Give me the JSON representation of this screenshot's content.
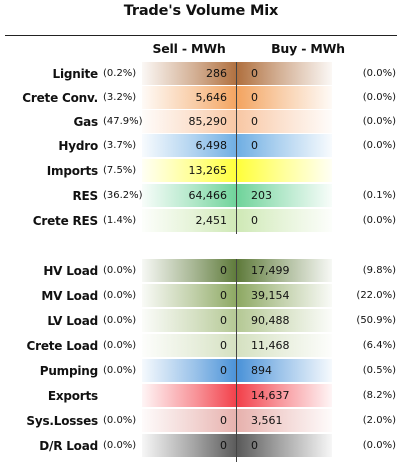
{
  "title": "Trade's Volume Mix",
  "columns": {
    "sell": "Sell - MWh",
    "buy": "Buy - MWh"
  },
  "chart_data": {
    "type": "table",
    "title": "Trade's Volume Mix",
    "columns": [
      "Sell - MWh",
      "Buy - MWh"
    ],
    "rows": [
      {
        "label": "Lignite",
        "sell_pct": "(0.2%)",
        "sell": "286",
        "buy": "0",
        "buy_pct": "(0.0%)",
        "sell_color": "#b0703f",
        "buy_color": "#b0703f"
      },
      {
        "label": "Crete Conv.",
        "sell_pct": "(3.2%)",
        "sell": "5,646",
        "buy": "0",
        "buy_pct": "(0.0%)",
        "sell_color": "#f3a460",
        "buy_color": "#f3a460"
      },
      {
        "label": "Gas",
        "sell_pct": "(47.9%)",
        "sell": "85,290",
        "buy": "0",
        "buy_pct": "(0.0%)",
        "sell_color": "#f8c7a4",
        "buy_color": "#f8c7a4"
      },
      {
        "label": "Hydro",
        "sell_pct": "(3.7%)",
        "sell": "6,498",
        "buy": "0",
        "buy_pct": "(0.0%)",
        "sell_color": "#6faee3",
        "buy_color": "#6faee3"
      },
      {
        "label": "Imports",
        "sell_pct": "(7.5%)",
        "sell": "13,265",
        "buy": "",
        "buy_pct": "",
        "sell_color": "#ffff3a",
        "buy_color": "#ffff3a"
      },
      {
        "label": "RES",
        "sell_pct": "(36.2%)",
        "sell": "64,466",
        "buy": "203",
        "buy_pct": "(0.1%)",
        "sell_color": "#6fd39a",
        "buy_color": "#6fd39a"
      },
      {
        "label": "Crete RES",
        "sell_pct": "(1.4%)",
        "sell": "2,451",
        "buy": "0",
        "buy_pct": "(0.0%)",
        "sell_color": "#cfe9b6",
        "buy_color": "#cfe9b6"
      },
      {
        "label": "HV Load",
        "sell_pct": "(0.0%)",
        "sell": "0",
        "buy": "17,499",
        "buy_pct": "(9.8%)",
        "sell_color": "#5e7a3a",
        "buy_color": "#5e7a3a"
      },
      {
        "label": "MV Load",
        "sell_pct": "(0.0%)",
        "sell": "0",
        "buy": "39,154",
        "buy_pct": "(22.0%)",
        "sell_color": "#8da862",
        "buy_color": "#8da862"
      },
      {
        "label": "LV Load",
        "sell_pct": "(0.0%)",
        "sell": "0",
        "buy": "90,488",
        "buy_pct": "(50.9%)",
        "sell_color": "#b4c894",
        "buy_color": "#b4c894"
      },
      {
        "label": "Crete Load",
        "sell_pct": "(0.0%)",
        "sell": "0",
        "buy": "11,468",
        "buy_pct": "(6.4%)",
        "sell_color": "#d5e1c1",
        "buy_color": "#d5e1c1"
      },
      {
        "label": "Pumping",
        "sell_pct": "(0.0%)",
        "sell": "0",
        "buy": "894",
        "buy_pct": "(0.5%)",
        "sell_color": "#4a92d8",
        "buy_color": "#4a92d8"
      },
      {
        "label": "Exports",
        "sell_pct": "",
        "sell": "",
        "buy": "14,637",
        "buy_pct": "(8.2%)",
        "sell_color": "#f2404a",
        "buy_color": "#f2404a"
      },
      {
        "label": "Sys.Losses",
        "sell_pct": "(0.0%)",
        "sell": "0",
        "buy": "3,561",
        "buy_pct": "(2.0%)",
        "sell_color": "#e7b1ad",
        "buy_color": "#e7b1ad"
      },
      {
        "label": "D/R Load",
        "sell_pct": "(0.0%)",
        "sell": "0",
        "buy": "0",
        "buy_pct": "(0.0%)",
        "sell_color": "#5a5a5a",
        "buy_color": "#5a5a5a"
      }
    ]
  }
}
